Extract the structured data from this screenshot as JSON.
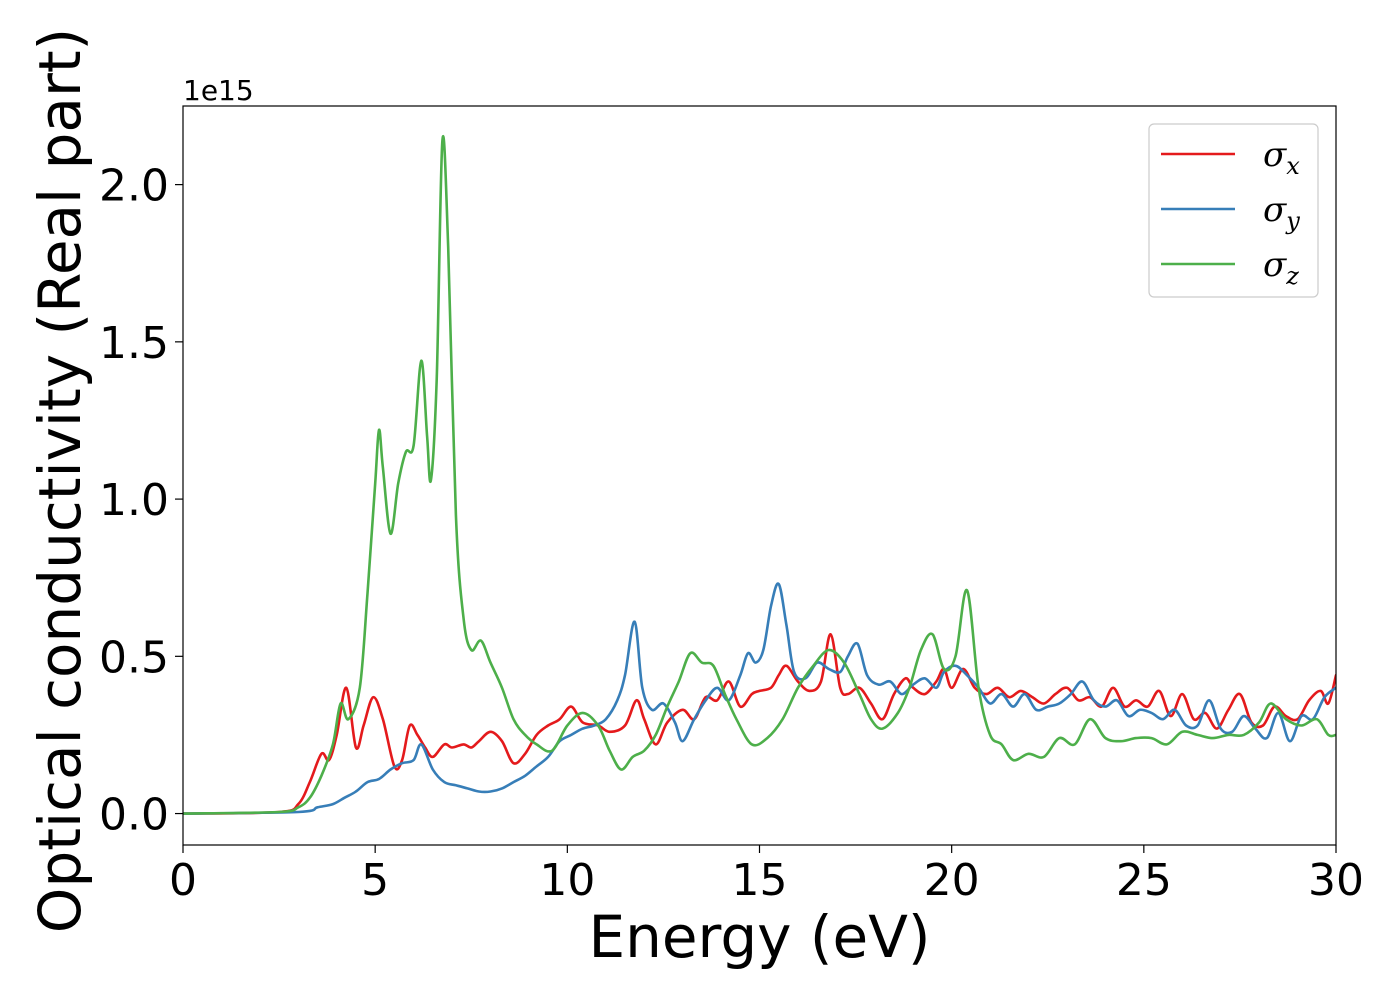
{
  "chart_data": {
    "type": "line",
    "title": "",
    "xlabel": "Energy (eV)",
    "ylabel": "Optical conductivity (Real part)",
    "y_offset_label": "1e15",
    "xlim": [
      0,
      30
    ],
    "ylim": [
      -0.1,
      2.25
    ],
    "x_ticks": [
      0,
      5,
      10,
      15,
      20,
      25,
      30
    ],
    "x_tick_labels": [
      "0",
      "5",
      "10",
      "15",
      "20",
      "25",
      "30"
    ],
    "y_ticks": [
      0.0,
      0.5,
      1.0,
      1.5,
      2.0
    ],
    "y_tick_labels": [
      "0.0",
      "0.5",
      "1.0",
      "1.5",
      "2.0"
    ],
    "grid": false,
    "legend_position": "top-right",
    "series": [
      {
        "name": "σx",
        "legend_base": "σ",
        "legend_sub": "x",
        "color": "#e41a1c",
        "points": [
          [
            0,
            0.0
          ],
          [
            2.5,
            0.005
          ],
          [
            3.0,
            0.03
          ],
          [
            3.3,
            0.1
          ],
          [
            3.6,
            0.19
          ],
          [
            3.8,
            0.17
          ],
          [
            4.0,
            0.25
          ],
          [
            4.25,
            0.4
          ],
          [
            4.5,
            0.21
          ],
          [
            4.7,
            0.28
          ],
          [
            4.95,
            0.37
          ],
          [
            5.2,
            0.3
          ],
          [
            5.5,
            0.15
          ],
          [
            5.7,
            0.17
          ],
          [
            5.9,
            0.28
          ],
          [
            6.1,
            0.25
          ],
          [
            6.3,
            0.21
          ],
          [
            6.5,
            0.18
          ],
          [
            6.8,
            0.22
          ],
          [
            7.0,
            0.21
          ],
          [
            7.3,
            0.22
          ],
          [
            7.5,
            0.21
          ],
          [
            7.7,
            0.23
          ],
          [
            8.0,
            0.26
          ],
          [
            8.3,
            0.23
          ],
          [
            8.6,
            0.16
          ],
          [
            8.9,
            0.19
          ],
          [
            9.2,
            0.25
          ],
          [
            9.5,
            0.28
          ],
          [
            9.8,
            0.3
          ],
          [
            10.1,
            0.34
          ],
          [
            10.4,
            0.29
          ],
          [
            10.8,
            0.28
          ],
          [
            11.1,
            0.26
          ],
          [
            11.5,
            0.28
          ],
          [
            11.8,
            0.36
          ],
          [
            12.0,
            0.3
          ],
          [
            12.3,
            0.22
          ],
          [
            12.6,
            0.29
          ],
          [
            13.0,
            0.33
          ],
          [
            13.3,
            0.3
          ],
          [
            13.6,
            0.37
          ],
          [
            13.9,
            0.36
          ],
          [
            14.2,
            0.42
          ],
          [
            14.5,
            0.34
          ],
          [
            14.8,
            0.38
          ],
          [
            15.0,
            0.39
          ],
          [
            15.3,
            0.4
          ],
          [
            15.5,
            0.44
          ],
          [
            15.7,
            0.47
          ],
          [
            16.0,
            0.42
          ],
          [
            16.3,
            0.39
          ],
          [
            16.6,
            0.42
          ],
          [
            16.85,
            0.57
          ],
          [
            17.1,
            0.4
          ],
          [
            17.3,
            0.38
          ],
          [
            17.6,
            0.4
          ],
          [
            17.9,
            0.35
          ],
          [
            18.2,
            0.3
          ],
          [
            18.5,
            0.38
          ],
          [
            18.8,
            0.43
          ],
          [
            19.0,
            0.4
          ],
          [
            19.3,
            0.38
          ],
          [
            19.6,
            0.42
          ],
          [
            19.8,
            0.46
          ],
          [
            20.0,
            0.4
          ],
          [
            20.3,
            0.46
          ],
          [
            20.6,
            0.4
          ],
          [
            20.9,
            0.38
          ],
          [
            21.2,
            0.4
          ],
          [
            21.5,
            0.37
          ],
          [
            21.8,
            0.39
          ],
          [
            22.1,
            0.37
          ],
          [
            22.4,
            0.35
          ],
          [
            22.7,
            0.38
          ],
          [
            23.0,
            0.4
          ],
          [
            23.3,
            0.36
          ],
          [
            23.6,
            0.37
          ],
          [
            23.9,
            0.34
          ],
          [
            24.2,
            0.4
          ],
          [
            24.5,
            0.34
          ],
          [
            24.8,
            0.36
          ],
          [
            25.1,
            0.34
          ],
          [
            25.4,
            0.39
          ],
          [
            25.7,
            0.31
          ],
          [
            26.0,
            0.38
          ],
          [
            26.3,
            0.3
          ],
          [
            26.6,
            0.32
          ],
          [
            26.9,
            0.27
          ],
          [
            27.2,
            0.33
          ],
          [
            27.5,
            0.38
          ],
          [
            27.8,
            0.29
          ],
          [
            28.1,
            0.28
          ],
          [
            28.4,
            0.34
          ],
          [
            28.7,
            0.31
          ],
          [
            29.0,
            0.3
          ],
          [
            29.3,
            0.36
          ],
          [
            29.6,
            0.39
          ],
          [
            29.8,
            0.35
          ],
          [
            30.0,
            0.44
          ]
        ]
      },
      {
        "name": "σy",
        "legend_base": "σ",
        "legend_sub": "y",
        "color": "#377eb8",
        "points": [
          [
            0,
            0.0
          ],
          [
            3.0,
            0.005
          ],
          [
            3.5,
            0.02
          ],
          [
            3.9,
            0.03
          ],
          [
            4.2,
            0.05
          ],
          [
            4.5,
            0.07
          ],
          [
            4.8,
            0.1
          ],
          [
            5.1,
            0.11
          ],
          [
            5.4,
            0.14
          ],
          [
            5.7,
            0.16
          ],
          [
            6.0,
            0.17
          ],
          [
            6.2,
            0.22
          ],
          [
            6.5,
            0.14
          ],
          [
            6.8,
            0.1
          ],
          [
            7.1,
            0.09
          ],
          [
            7.4,
            0.08
          ],
          [
            7.7,
            0.07
          ],
          [
            8.0,
            0.07
          ],
          [
            8.3,
            0.08
          ],
          [
            8.6,
            0.1
          ],
          [
            8.9,
            0.12
          ],
          [
            9.2,
            0.15
          ],
          [
            9.5,
            0.18
          ],
          [
            9.8,
            0.23
          ],
          [
            10.1,
            0.25
          ],
          [
            10.4,
            0.27
          ],
          [
            10.7,
            0.28
          ],
          [
            11.0,
            0.3
          ],
          [
            11.3,
            0.36
          ],
          [
            11.5,
            0.44
          ],
          [
            11.75,
            0.61
          ],
          [
            11.95,
            0.4
          ],
          [
            12.2,
            0.33
          ],
          [
            12.5,
            0.35
          ],
          [
            12.8,
            0.29
          ],
          [
            13.0,
            0.23
          ],
          [
            13.3,
            0.3
          ],
          [
            13.6,
            0.36
          ],
          [
            13.9,
            0.4
          ],
          [
            14.2,
            0.36
          ],
          [
            14.5,
            0.44
          ],
          [
            14.7,
            0.51
          ],
          [
            14.9,
            0.48
          ],
          [
            15.1,
            0.52
          ],
          [
            15.3,
            0.66
          ],
          [
            15.5,
            0.73
          ],
          [
            15.7,
            0.6
          ],
          [
            15.9,
            0.45
          ],
          [
            16.2,
            0.43
          ],
          [
            16.5,
            0.48
          ],
          [
            16.8,
            0.46
          ],
          [
            17.1,
            0.45
          ],
          [
            17.3,
            0.5
          ],
          [
            17.55,
            0.54
          ],
          [
            17.8,
            0.44
          ],
          [
            18.1,
            0.41
          ],
          [
            18.4,
            0.42
          ],
          [
            18.7,
            0.38
          ],
          [
            19.0,
            0.41
          ],
          [
            19.3,
            0.43
          ],
          [
            19.6,
            0.4
          ],
          [
            19.8,
            0.45
          ],
          [
            20.1,
            0.47
          ],
          [
            20.4,
            0.44
          ],
          [
            20.7,
            0.4
          ],
          [
            21.0,
            0.35
          ],
          [
            21.3,
            0.38
          ],
          [
            21.6,
            0.34
          ],
          [
            21.9,
            0.38
          ],
          [
            22.2,
            0.33
          ],
          [
            22.5,
            0.34
          ],
          [
            22.8,
            0.35
          ],
          [
            23.1,
            0.38
          ],
          [
            23.4,
            0.42
          ],
          [
            23.7,
            0.36
          ],
          [
            24.0,
            0.34
          ],
          [
            24.3,
            0.36
          ],
          [
            24.6,
            0.31
          ],
          [
            24.9,
            0.33
          ],
          [
            25.2,
            0.32
          ],
          [
            25.5,
            0.3
          ],
          [
            25.8,
            0.33
          ],
          [
            26.1,
            0.28
          ],
          [
            26.4,
            0.28
          ],
          [
            26.7,
            0.36
          ],
          [
            27.0,
            0.27
          ],
          [
            27.3,
            0.26
          ],
          [
            27.6,
            0.31
          ],
          [
            27.9,
            0.27
          ],
          [
            28.2,
            0.24
          ],
          [
            28.5,
            0.32
          ],
          [
            28.8,
            0.23
          ],
          [
            29.1,
            0.31
          ],
          [
            29.4,
            0.3
          ],
          [
            29.7,
            0.37
          ],
          [
            30.0,
            0.4
          ]
        ]
      },
      {
        "name": "σz",
        "legend_base": "σ",
        "legend_sub": "z",
        "color": "#4daf4a",
        "points": [
          [
            0,
            0.0
          ],
          [
            2.5,
            0.005
          ],
          [
            3.0,
            0.02
          ],
          [
            3.3,
            0.05
          ],
          [
            3.6,
            0.12
          ],
          [
            3.9,
            0.22
          ],
          [
            4.1,
            0.35
          ],
          [
            4.3,
            0.3
          ],
          [
            4.6,
            0.4
          ],
          [
            4.8,
            0.7
          ],
          [
            5.0,
            1.05
          ],
          [
            5.1,
            1.22
          ],
          [
            5.2,
            1.1
          ],
          [
            5.4,
            0.89
          ],
          [
            5.6,
            1.05
          ],
          [
            5.8,
            1.15
          ],
          [
            6.0,
            1.17
          ],
          [
            6.2,
            1.44
          ],
          [
            6.35,
            1.2
          ],
          [
            6.45,
            1.06
          ],
          [
            6.6,
            1.38
          ],
          [
            6.75,
            2.14
          ],
          [
            6.9,
            1.8
          ],
          [
            7.1,
            0.95
          ],
          [
            7.3,
            0.62
          ],
          [
            7.5,
            0.52
          ],
          [
            7.75,
            0.55
          ],
          [
            8.0,
            0.48
          ],
          [
            8.3,
            0.4
          ],
          [
            8.6,
            0.3
          ],
          [
            8.9,
            0.25
          ],
          [
            9.2,
            0.22
          ],
          [
            9.6,
            0.2
          ],
          [
            10.0,
            0.28
          ],
          [
            10.4,
            0.32
          ],
          [
            10.8,
            0.28
          ],
          [
            11.1,
            0.2
          ],
          [
            11.4,
            0.14
          ],
          [
            11.7,
            0.18
          ],
          [
            12.0,
            0.2
          ],
          [
            12.3,
            0.25
          ],
          [
            12.6,
            0.34
          ],
          [
            12.9,
            0.42
          ],
          [
            13.2,
            0.51
          ],
          [
            13.5,
            0.48
          ],
          [
            13.8,
            0.47
          ],
          [
            14.1,
            0.38
          ],
          [
            14.4,
            0.3
          ],
          [
            14.8,
            0.22
          ],
          [
            15.2,
            0.24
          ],
          [
            15.6,
            0.3
          ],
          [
            16.0,
            0.4
          ],
          [
            16.4,
            0.47
          ],
          [
            16.8,
            0.52
          ],
          [
            17.2,
            0.48
          ],
          [
            17.6,
            0.38
          ],
          [
            17.9,
            0.3
          ],
          [
            18.2,
            0.27
          ],
          [
            18.6,
            0.32
          ],
          [
            18.9,
            0.4
          ],
          [
            19.2,
            0.52
          ],
          [
            19.5,
            0.57
          ],
          [
            19.8,
            0.46
          ],
          [
            20.1,
            0.5
          ],
          [
            20.4,
            0.71
          ],
          [
            20.7,
            0.4
          ],
          [
            21.0,
            0.25
          ],
          [
            21.3,
            0.22
          ],
          [
            21.6,
            0.17
          ],
          [
            22.0,
            0.19
          ],
          [
            22.4,
            0.18
          ],
          [
            22.8,
            0.24
          ],
          [
            23.2,
            0.22
          ],
          [
            23.6,
            0.3
          ],
          [
            24.0,
            0.24
          ],
          [
            24.4,
            0.23
          ],
          [
            24.8,
            0.24
          ],
          [
            25.2,
            0.24
          ],
          [
            25.6,
            0.22
          ],
          [
            26.0,
            0.26
          ],
          [
            26.4,
            0.25
          ],
          [
            26.8,
            0.24
          ],
          [
            27.2,
            0.25
          ],
          [
            27.6,
            0.25
          ],
          [
            28.0,
            0.29
          ],
          [
            28.3,
            0.35
          ],
          [
            28.7,
            0.3
          ],
          [
            29.1,
            0.28
          ],
          [
            29.5,
            0.3
          ],
          [
            29.8,
            0.25
          ],
          [
            30.0,
            0.25
          ]
        ]
      }
    ]
  }
}
